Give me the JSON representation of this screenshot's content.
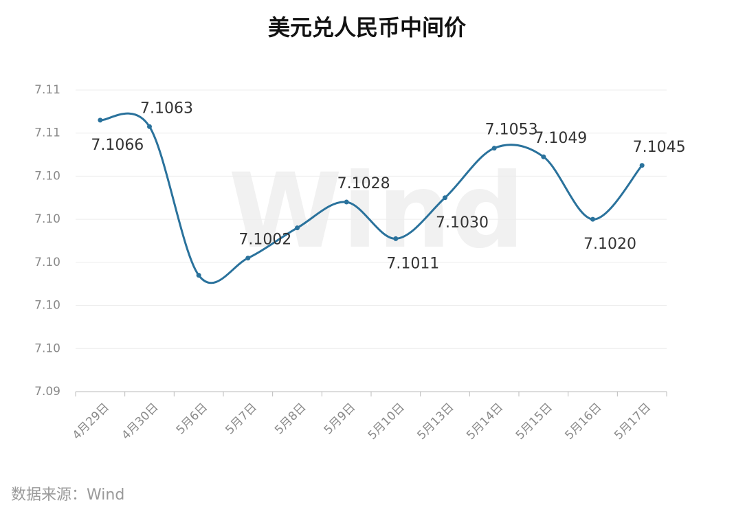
{
  "chart_data": {
    "type": "line",
    "title": "美元兑人民币中间价",
    "categories": [
      "4月29日",
      "4月30日",
      "5月6日",
      "5月7日",
      "5月8日",
      "5月9日",
      "5月10日",
      "5月13日",
      "5月14日",
      "5月15日",
      "5月16日",
      "5月17日"
    ],
    "series": [
      {
        "name": "美元兑人民币中间价",
        "color": "#2a729c",
        "values": [
          7.1066,
          7.1063,
          7.0994,
          7.1002,
          7.1016,
          7.1028,
          7.1011,
          7.103,
          7.1053,
          7.1049,
          7.102,
          7.1045
        ],
        "value_labels": [
          "7.1066",
          "7.1063",
          null,
          "7.1002",
          null,
          "7.1028",
          "7.1011",
          "7.1030",
          "7.1053",
          "7.1049",
          "7.1020",
          "7.1045"
        ]
      }
    ],
    "ylim": [
      7.094,
      7.108
    ],
    "yticks": [
      {
        "value": 7.094,
        "label": "7.09"
      },
      {
        "value": 7.096,
        "label": "7.10"
      },
      {
        "value": 7.098,
        "label": "7.10"
      },
      {
        "value": 7.1,
        "label": "7.10"
      },
      {
        "value": 7.102,
        "label": "7.10"
      },
      {
        "value": 7.104,
        "label": "7.10"
      },
      {
        "value": 7.106,
        "label": "7.11"
      },
      {
        "value": 7.108,
        "label": "7.11"
      }
    ],
    "grid": true,
    "watermark": "Wind",
    "source": "数据来源：Wind"
  }
}
